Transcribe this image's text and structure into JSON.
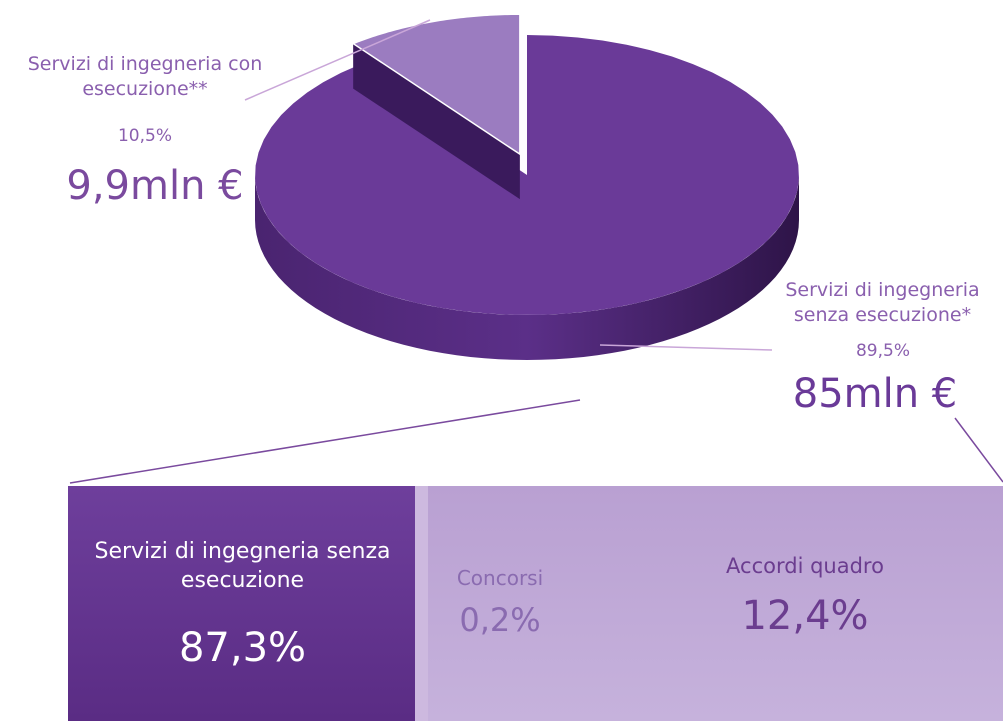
{
  "chart_data": {
    "type": "pie3d",
    "categories": [
      "Servizi di ingegneria con esecuzione**",
      "Servizi di ingegneria senza esecuzione*"
    ],
    "values": [
      10.5,
      89.5
    ],
    "value_labels": [
      "10,5%",
      "89,5%"
    ],
    "amount_labels": [
      "9,9mln €",
      "85mln €"
    ],
    "colors": [
      "#9b7cc0",
      "#6a3a98"
    ],
    "exploded": [
      true,
      false
    ]
  },
  "breakdown": {
    "items": [
      {
        "label": "Servizi di ingegneria senza esecuzione",
        "value_label": "87,3%"
      },
      {
        "label": "Concorsi",
        "value_label": "0,2%"
      },
      {
        "label": "Accordi quadro",
        "value_label": "12,4%"
      }
    ]
  }
}
